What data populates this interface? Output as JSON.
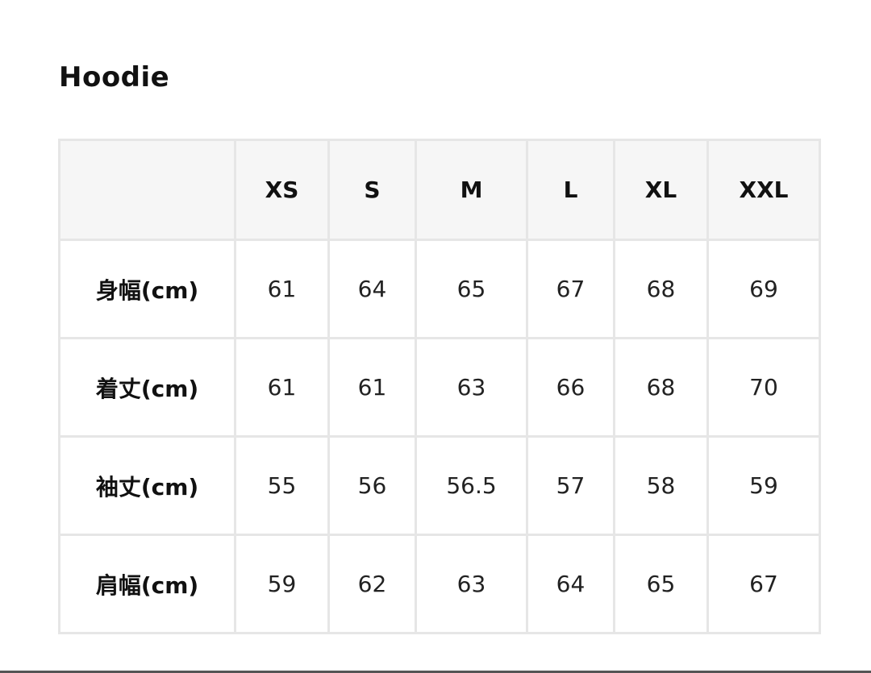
{
  "title": "Hoodie",
  "size_table": {
    "corner": "",
    "sizes": [
      "XS",
      "S",
      "M",
      "L",
      "XL",
      "XXL"
    ],
    "rows": [
      {
        "label": "身幅(cm)",
        "values": [
          "61",
          "64",
          "65",
          "67",
          "68",
          "69"
        ]
      },
      {
        "label": "着丈(cm)",
        "values": [
          "61",
          "61",
          "63",
          "66",
          "68",
          "70"
        ]
      },
      {
        "label": "袖丈(cm)",
        "values": [
          "55",
          "56",
          "56.5",
          "57",
          "58",
          "59"
        ]
      },
      {
        "label": "肩幅(cm)",
        "values": [
          "59",
          "62",
          "63",
          "64",
          "65",
          "67"
        ]
      }
    ]
  },
  "colors": {
    "header_bg": "#f6f6f6",
    "border": "#e6e6e6",
    "text": "#111111"
  }
}
